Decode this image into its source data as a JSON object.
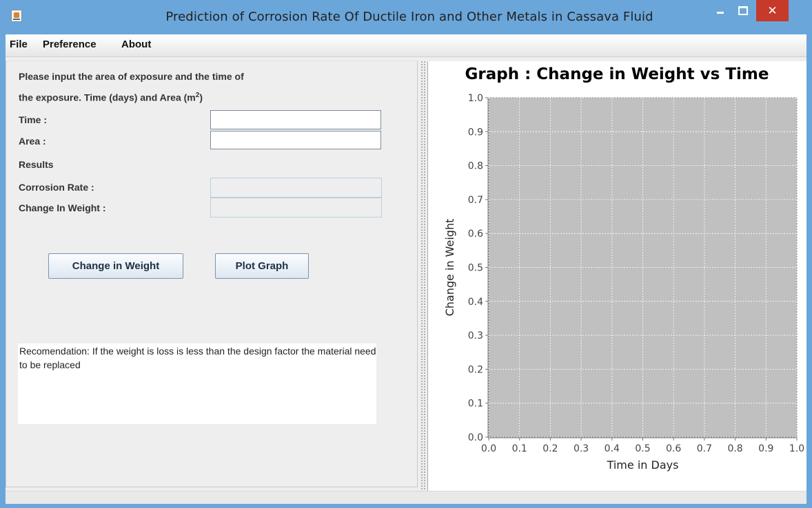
{
  "window": {
    "title": "Prediction of Corrosion Rate Of Ductile Iron and Other Metals in Cassava Fluid",
    "close_glyph": "✕"
  },
  "menu": [
    {
      "label": "File"
    },
    {
      "label": "Preference"
    },
    {
      "label": "About"
    }
  ],
  "form": {
    "instruction_line1": "Please input the area of exposure and the time of",
    "instruction_line2_prefix": "the exposure. Time (days) and Area (m",
    "instruction_sup": "2",
    "instruction_line2_suffix": ")",
    "time_label": "Time :",
    "time_value": "",
    "area_label": "Area :",
    "area_value": "",
    "results_label": "Results",
    "corrosion_label": "Corrosion Rate :",
    "corrosion_value": "",
    "weight_label": "Change In Weight :",
    "weight_value": "",
    "change_button": "Change in Weight",
    "plot_button": "Plot Graph",
    "recommendation": "Recomendation: If the weight is loss is less than the design factor the material need to be replaced"
  },
  "chart_data": {
    "type": "line",
    "title": "Graph : Change in Weight vs Time",
    "xlabel": "Time in Days",
    "ylabel": "Change in Weight",
    "xlim": [
      0.0,
      1.0
    ],
    "ylim": [
      0.0,
      1.0
    ],
    "x_ticks": [
      "0.0",
      "0.1",
      "0.2",
      "0.3",
      "0.4",
      "0.5",
      "0.6",
      "0.7",
      "0.8",
      "0.9",
      "1.0"
    ],
    "y_ticks": [
      "0.0",
      "0.1",
      "0.2",
      "0.3",
      "0.4",
      "0.5",
      "0.6",
      "0.7",
      "0.8",
      "0.9",
      "1.0"
    ],
    "grid": true,
    "series": [],
    "plot_background": "#c0c0c0",
    "grid_color": "#ffffff"
  }
}
